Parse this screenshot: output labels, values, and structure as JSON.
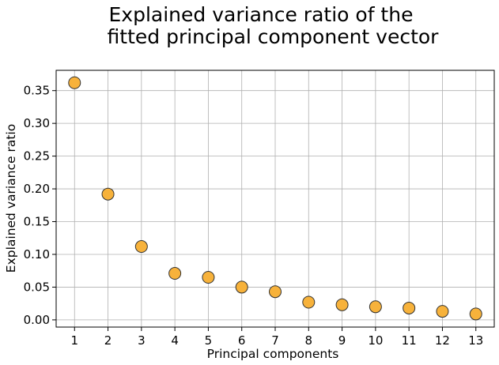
{
  "chart_data": {
    "type": "scatter",
    "title_lines": [
      "Explained variance ratio of the",
      "fitted principal component vector"
    ],
    "xlabel": "Principal components",
    "ylabel": "Explained variance ratio",
    "x": [
      1,
      2,
      3,
      4,
      5,
      6,
      7,
      8,
      9,
      10,
      11,
      12,
      13
    ],
    "y": [
      0.362,
      0.192,
      0.112,
      0.071,
      0.065,
      0.05,
      0.043,
      0.027,
      0.023,
      0.02,
      0.018,
      0.013,
      0.009
    ],
    "x_ticks": [
      "1",
      "2",
      "3",
      "4",
      "5",
      "6",
      "7",
      "8",
      "9",
      "10",
      "11",
      "12",
      "13"
    ],
    "y_ticks": [
      "0.00",
      "0.05",
      "0.10",
      "0.15",
      "0.20",
      "0.25",
      "0.30",
      "0.35"
    ],
    "xlim": [
      0.45,
      13.55
    ],
    "ylim": [
      -0.011,
      0.381
    ],
    "grid": true,
    "marker_color": "#f7b23b",
    "marker_edge_color": "#333333",
    "grid_color": "#b0b0b0"
  }
}
